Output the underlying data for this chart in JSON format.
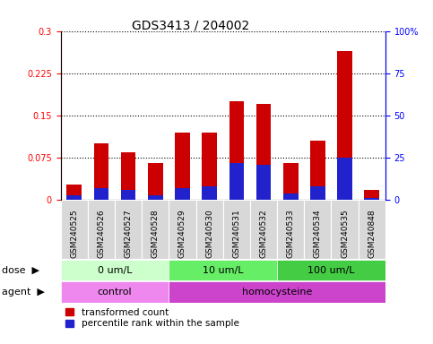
{
  "title": "GDS3413 / 204002",
  "samples": [
    "GSM240525",
    "GSM240526",
    "GSM240527",
    "GSM240528",
    "GSM240529",
    "GSM240530",
    "GSM240531",
    "GSM240532",
    "GSM240533",
    "GSM240534",
    "GSM240535",
    "GSM240848"
  ],
  "red_values": [
    0.028,
    0.1,
    0.085,
    0.065,
    0.12,
    0.12,
    0.175,
    0.17,
    0.065,
    0.105,
    0.265,
    0.018
  ],
  "blue_percentile": [
    3,
    7,
    6,
    3,
    7,
    8,
    22,
    21,
    4,
    8,
    25,
    1
  ],
  "ylim_left": [
    0,
    0.3
  ],
  "ylim_right": [
    0,
    100
  ],
  "yticks_left": [
    0,
    0.075,
    0.15,
    0.225,
    0.3
  ],
  "yticks_right": [
    0,
    25,
    50,
    75,
    100
  ],
  "ytick_labels_left": [
    "0",
    "0.075",
    "0.15",
    "0.225",
    "0.3"
  ],
  "ytick_labels_right": [
    "0",
    "25",
    "50",
    "75",
    "100%"
  ],
  "bar_color_red": "#cc0000",
  "bar_color_blue": "#2222cc",
  "dose_groups": [
    {
      "label": "0 um/L",
      "start": 0,
      "end": 4,
      "color": "#ccffcc"
    },
    {
      "label": "10 um/L",
      "start": 4,
      "end": 8,
      "color": "#66ee66"
    },
    {
      "label": "100 um/L",
      "start": 8,
      "end": 12,
      "color": "#44cc44"
    }
  ],
  "agent_groups": [
    {
      "label": "control",
      "start": 0,
      "end": 4,
      "color": "#ee88ee"
    },
    {
      "label": "homocysteine",
      "start": 4,
      "end": 12,
      "color": "#cc44cc"
    }
  ],
  "dose_label": "dose",
  "agent_label": "agent",
  "legend_red": "transformed count",
  "legend_blue": "percentile rank within the sample",
  "bar_width": 0.55,
  "title_fontsize": 10,
  "tick_fontsize": 7,
  "label_fontsize": 8,
  "sample_fontsize": 6.5
}
